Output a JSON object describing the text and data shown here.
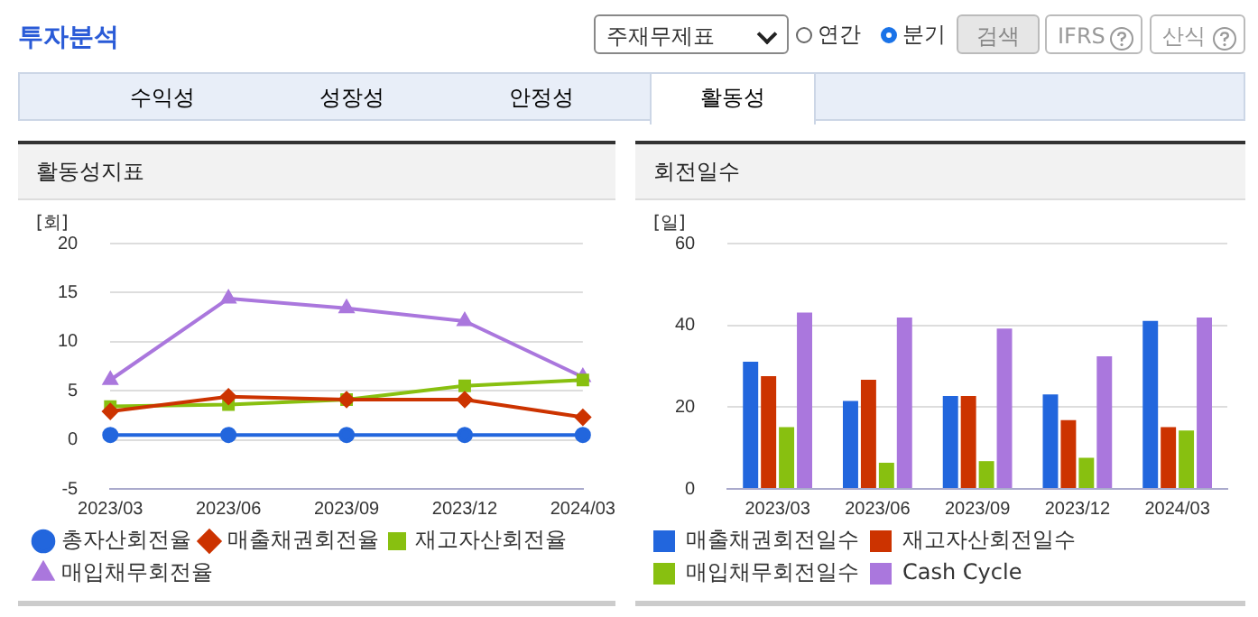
{
  "chart_data": [
    {
      "type": "line",
      "title": "활동성지표",
      "ylabel": "[회]",
      "categories": [
        "2023/03",
        "2023/06",
        "2023/09",
        "2023/12",
        "2024/03"
      ],
      "series": [
        {
          "name": "총자산회전율",
          "color": "#2266dd",
          "marker": "circle",
          "values": [
            0.5,
            0.5,
            0.5,
            0.5,
            0.5
          ]
        },
        {
          "name": "매출채권회전율",
          "color": "#cc3300",
          "marker": "diamond",
          "values": [
            2.9,
            4.4,
            4.1,
            4.1,
            2.3
          ]
        },
        {
          "name": "재고자산회전율",
          "color": "#88c010",
          "marker": "square",
          "values": [
            3.4,
            3.6,
            4.1,
            5.5,
            6.1
          ]
        },
        {
          "name": "매입채무회전율",
          "color": "#aa77dd",
          "marker": "triangle",
          "values": [
            6.1,
            14.4,
            13.4,
            12.1,
            6.4
          ]
        }
      ],
      "ylim": [
        -5,
        20
      ],
      "yticks": [
        -5,
        0,
        5,
        10,
        15,
        20
      ],
      "grid": "y",
      "legend": "bottom",
      "annotations": [
        "투자분석",
        "주재무제표",
        "연간",
        "분기",
        "검색",
        "IFRS",
        "산식",
        "수익성",
        "성장성",
        "안정성",
        "활동성"
      ]
    },
    {
      "type": "bar",
      "title": "회전일수",
      "ylabel": "[일]",
      "categories": [
        "2023/03",
        "2023/06",
        "2023/09",
        "2023/12",
        "2024/03"
      ],
      "series": [
        {
          "name": "매출채권회전일수",
          "color": "#2266dd",
          "values": [
            31.1,
            21.5,
            22.7,
            23.1,
            41.1
          ]
        },
        {
          "name": "재고자산회전일수",
          "color": "#cc3300",
          "values": [
            27.6,
            26.7,
            22.7,
            16.8,
            15.1
          ]
        },
        {
          "name": "매입채무회전일수",
          "color": "#88c010",
          "values": [
            15.1,
            6.4,
            6.8,
            7.6,
            14.3
          ]
        },
        {
          "name": "Cash Cycle",
          "color": "#aa77dd",
          "values": [
            43.1,
            41.9,
            39.2,
            32.4,
            41.9
          ]
        }
      ],
      "ylim": [
        0,
        60
      ],
      "yticks": [
        0,
        20,
        40,
        60
      ],
      "grid": "y",
      "legend": "bottom"
    }
  ]
}
